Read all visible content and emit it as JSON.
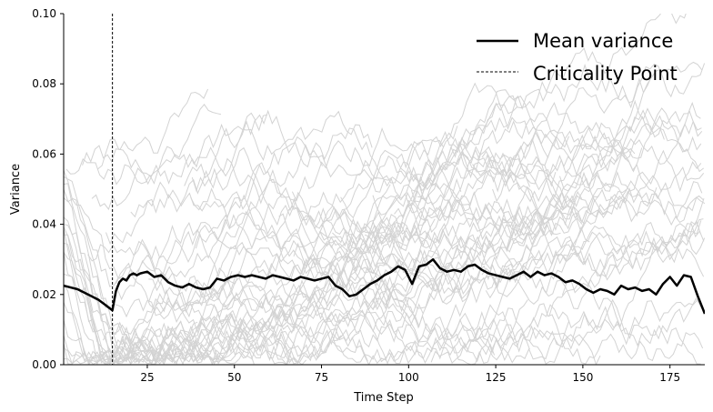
{
  "chart_data": {
    "type": "line",
    "title": "",
    "xlabel": "Time Step",
    "ylabel": "Variance",
    "xlim": [
      1,
      185
    ],
    "ylim": [
      0,
      0.1
    ],
    "xticks": [
      25,
      50,
      75,
      100,
      125,
      150,
      175
    ],
    "yticks": [
      0.0,
      0.02,
      0.04,
      0.06,
      0.08,
      0.1
    ],
    "ytick_labels": [
      "0.00",
      "0.02",
      "0.04",
      "0.06",
      "0.08",
      "0.10"
    ],
    "grid": false,
    "legend": {
      "placement": "top-right",
      "entries": [
        "Mean variance",
        "Criticality Point"
      ]
    },
    "colors": {
      "mean": "#000000",
      "background_runs": "#d3d3d3",
      "criticality": "#000000"
    },
    "criticality_point": {
      "x": 15,
      "name": "Criticality Point",
      "style": "dashed"
    },
    "series": [
      {
        "name": "Mean variance",
        "x": [
          1,
          3,
          5,
          7,
          9,
          11,
          13,
          15,
          16,
          17,
          18,
          19,
          20,
          21,
          22,
          23,
          25,
          27,
          29,
          31,
          33,
          35,
          37,
          39,
          41,
          43,
          45,
          47,
          49,
          51,
          53,
          55,
          57,
          59,
          61,
          63,
          65,
          67,
          69,
          71,
          73,
          75,
          77,
          79,
          81,
          83,
          85,
          87,
          89,
          91,
          93,
          95,
          97,
          99,
          101,
          103,
          105,
          107,
          109,
          111,
          113,
          115,
          117,
          119,
          121,
          123,
          125,
          127,
          129,
          131,
          133,
          135,
          137,
          139,
          141,
          143,
          145,
          147,
          149,
          151,
          153,
          155,
          157,
          159,
          161,
          163,
          165,
          167,
          169,
          171,
          173,
          175,
          177,
          179,
          181,
          183,
          185
        ],
        "values": [
          0.0225,
          0.022,
          0.0215,
          0.0205,
          0.0195,
          0.0185,
          0.017,
          0.0155,
          0.021,
          0.0235,
          0.0245,
          0.024,
          0.0255,
          0.026,
          0.0255,
          0.026,
          0.0265,
          0.025,
          0.0255,
          0.0235,
          0.0225,
          0.022,
          0.023,
          0.022,
          0.0215,
          0.022,
          0.0245,
          0.024,
          0.025,
          0.0255,
          0.025,
          0.0255,
          0.025,
          0.0245,
          0.0255,
          0.025,
          0.0245,
          0.024,
          0.025,
          0.0245,
          0.024,
          0.0245,
          0.025,
          0.0225,
          0.0215,
          0.0195,
          0.02,
          0.0215,
          0.023,
          0.024,
          0.0255,
          0.0265,
          0.028,
          0.027,
          0.023,
          0.028,
          0.0285,
          0.03,
          0.0275,
          0.0265,
          0.027,
          0.0265,
          0.028,
          0.0285,
          0.027,
          0.026,
          0.0255,
          0.025,
          0.0245,
          0.0255,
          0.0265,
          0.025,
          0.0265,
          0.0255,
          0.026,
          0.025,
          0.0235,
          0.024,
          0.023,
          0.0215,
          0.0205,
          0.0215,
          0.021,
          0.02,
          0.0225,
          0.0215,
          0.022,
          0.021,
          0.0215,
          0.02,
          0.023,
          0.025,
          0.0225,
          0.0255,
          0.025,
          0.0195,
          0.0145
        ]
      }
    ]
  }
}
